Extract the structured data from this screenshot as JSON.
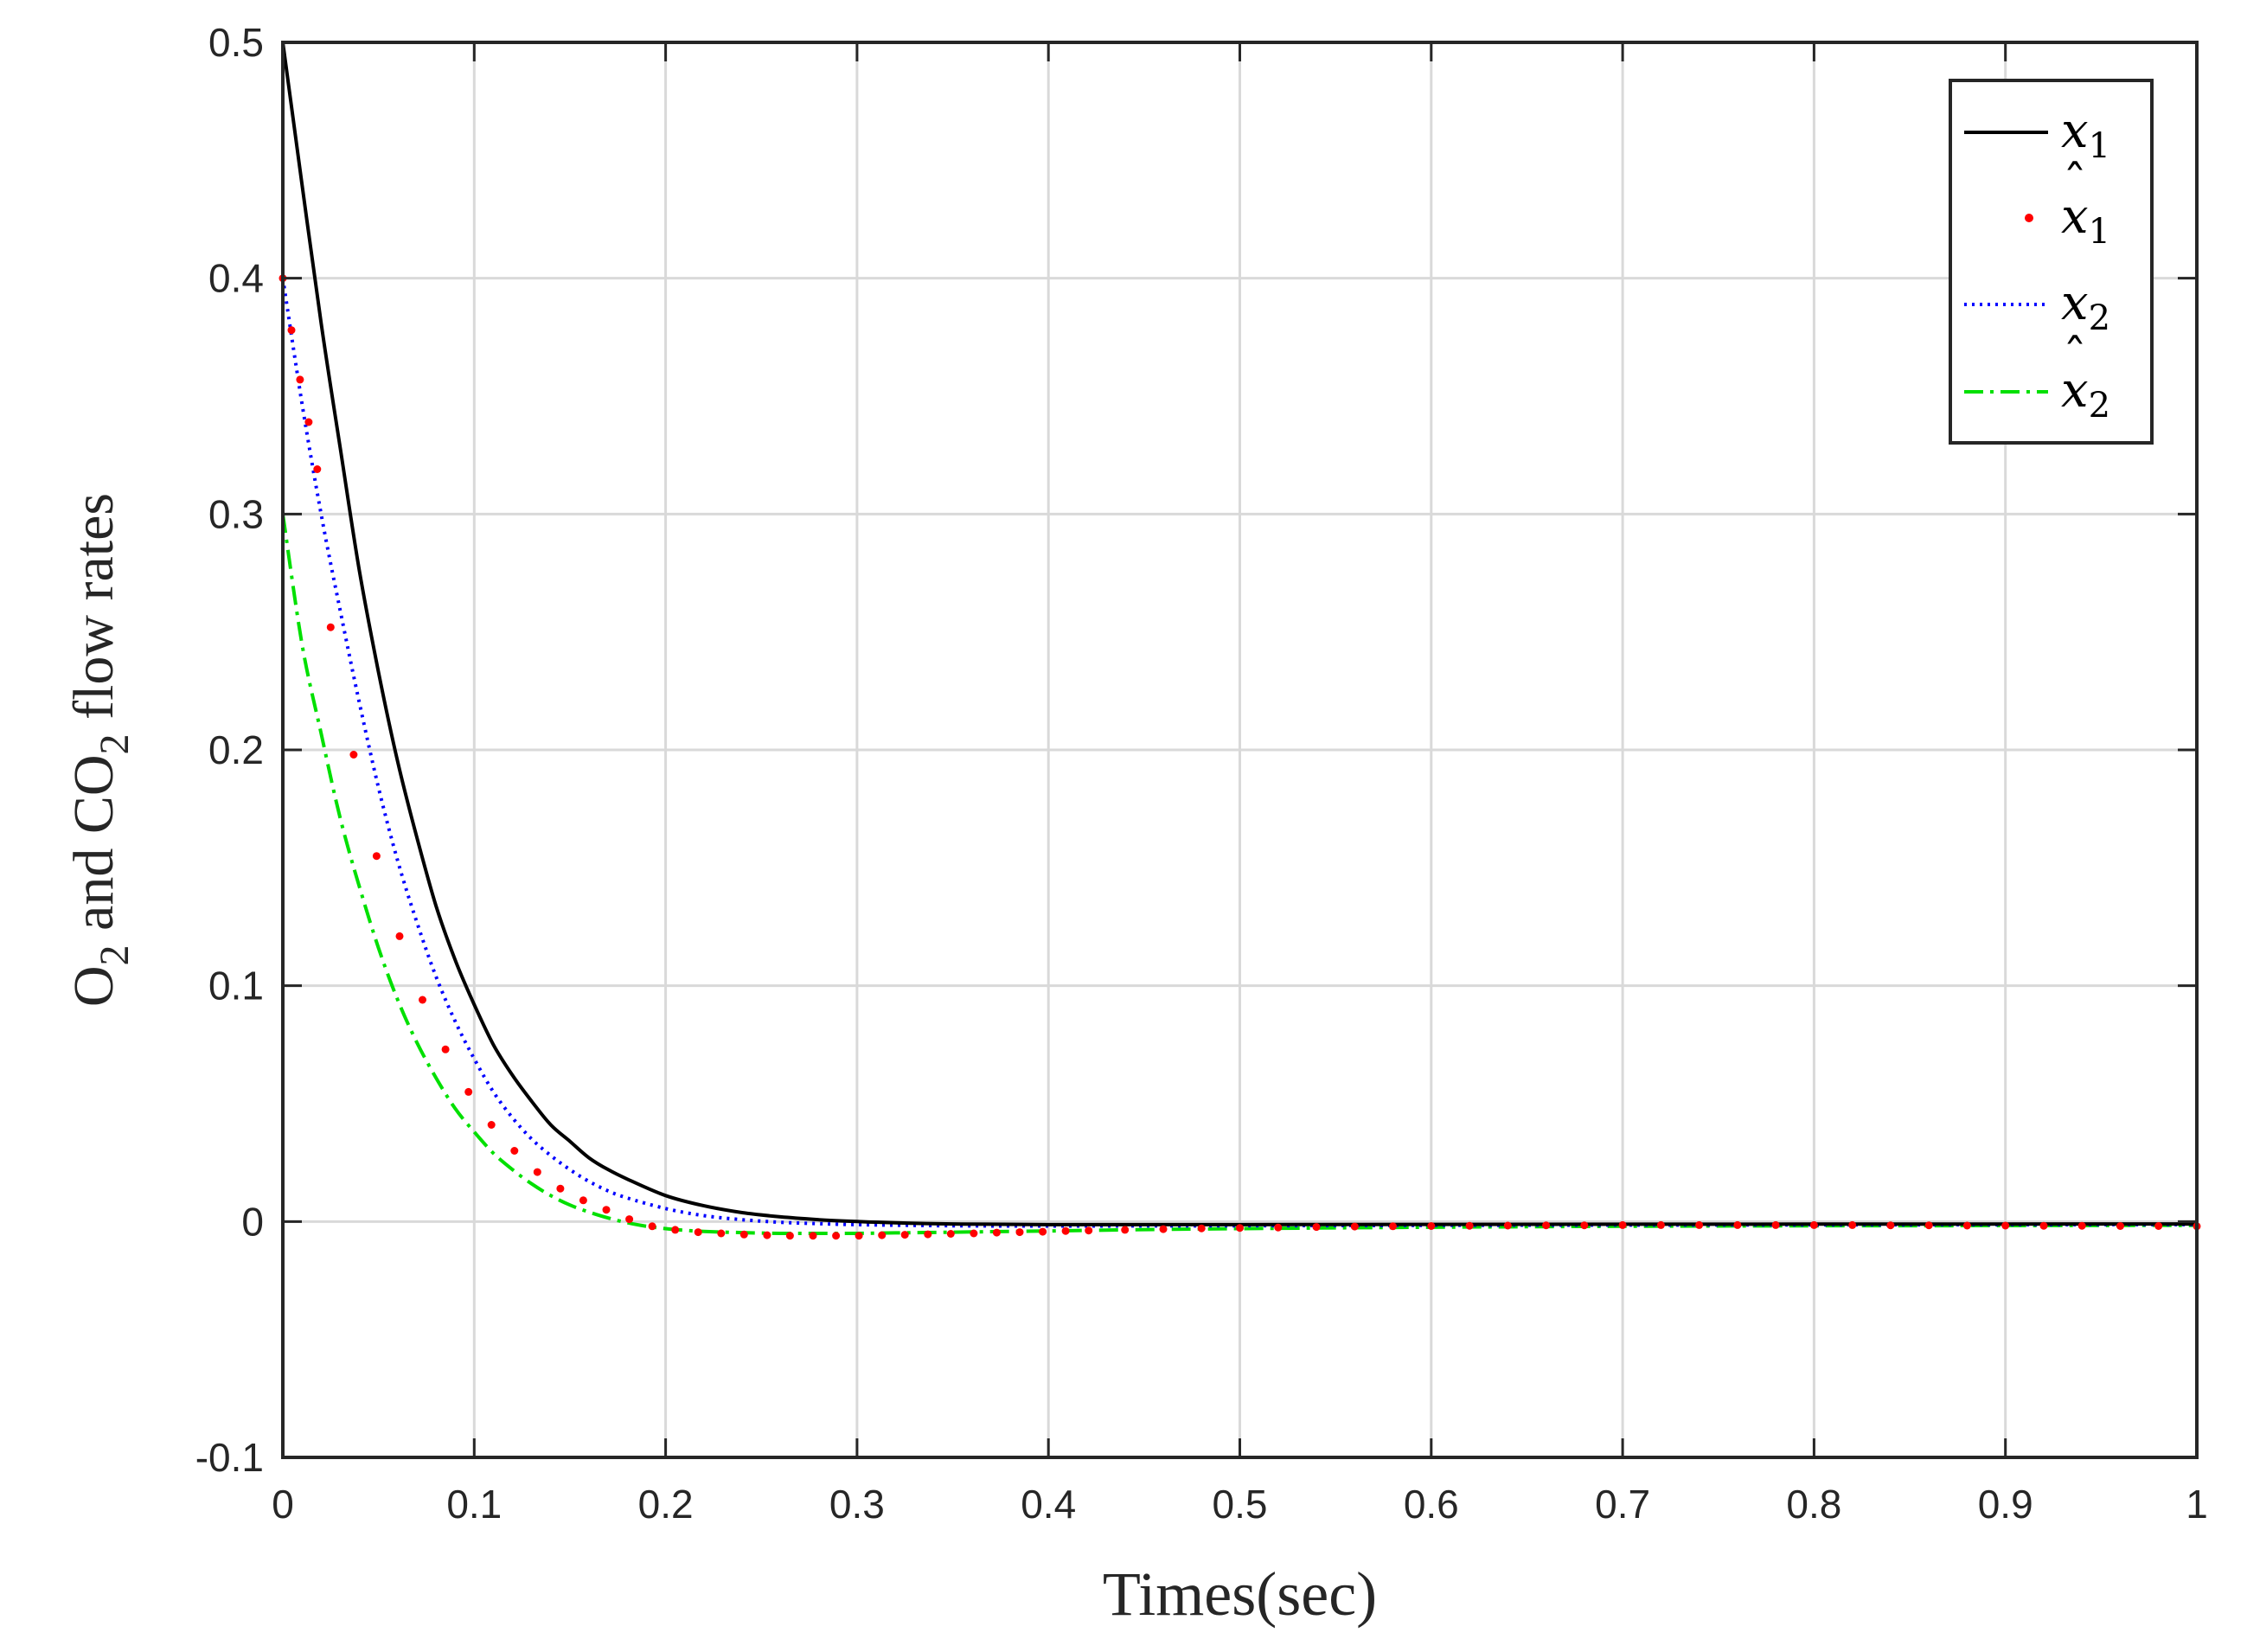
{
  "chart_data": {
    "type": "line",
    "title": "",
    "xlabel": "Times(sec)",
    "ylabel": {
      "parts": [
        "O",
        "2",
        " and CO",
        "2",
        " flow rates"
      ]
    },
    "xlim": [
      0,
      1
    ],
    "ylim": [
      -0.1,
      0.5
    ],
    "x_ticks": [
      0,
      0.1,
      0.2,
      0.3,
      0.4,
      0.5,
      0.6,
      0.7,
      0.8,
      0.9,
      1
    ],
    "x_tick_labels": [
      "0",
      "0.1",
      "0.2",
      "0.3",
      "0.4",
      "0.5",
      "0.6",
      "0.7",
      "0.8",
      "0.9",
      "1"
    ],
    "y_ticks": [
      -0.1,
      0,
      0.1,
      0.2,
      0.3,
      0.4,
      0.5
    ],
    "y_tick_labels": [
      "-0.1",
      "0",
      "0.1",
      "0.2",
      "0.3",
      "0.4",
      "0.5"
    ],
    "grid": true,
    "legend_position": "top-right",
    "series": [
      {
        "name": "x1",
        "legend": {
          "base": "x",
          "sub": "1",
          "hat": false
        },
        "style": "solid",
        "color": "#000000",
        "x": [
          0,
          0.01,
          0.02,
          0.03,
          0.04,
          0.05,
          0.06,
          0.07,
          0.08,
          0.09,
          0.1,
          0.11,
          0.12,
          0.13,
          0.14,
          0.15,
          0.16,
          0.17,
          0.18,
          0.2,
          0.22,
          0.24,
          0.26,
          0.28,
          0.3,
          0.32,
          0.35,
          0.4,
          0.5,
          0.6,
          0.8,
          1.0
        ],
        "y": [
          0.5,
          0.44,
          0.381,
          0.328,
          0.276,
          0.233,
          0.195,
          0.163,
          0.134,
          0.111,
          0.092,
          0.075,
          0.062,
          0.051,
          0.041,
          0.034,
          0.027,
          0.022,
          0.018,
          0.011,
          0.0067,
          0.0038,
          0.002,
          0.0008,
          0.0,
          -0.0005,
          -0.001,
          -0.0013,
          -0.0013,
          -0.0012,
          -0.0011,
          -0.001
        ]
      },
      {
        "name": "x̂1",
        "legend": {
          "base": "x",
          "sub": "1",
          "hat": true
        },
        "style": "dots",
        "color": "#ff0000",
        "x": [
          0,
          0.0045,
          0.009,
          0.0135,
          0.018,
          0.025,
          0.037,
          0.049,
          0.061,
          0.073,
          0.085,
          0.097,
          0.109,
          0.121,
          0.133,
          0.145,
          0.157,
          0.169,
          0.181,
          0.193,
          0.205,
          0.217,
          0.229,
          0.241,
          0.253,
          0.265,
          0.277,
          0.289,
          0.301,
          0.313,
          0.325,
          0.337,
          0.349,
          0.361,
          0.373,
          0.385,
          0.397,
          0.409,
          0.421,
          0.44,
          0.46,
          0.48,
          0.5,
          0.52,
          0.54,
          0.56,
          0.58,
          0.6,
          0.62,
          0.64,
          0.66,
          0.68,
          0.7,
          0.72,
          0.74,
          0.76,
          0.78,
          0.8,
          0.82,
          0.84,
          0.86,
          0.88,
          0.9,
          0.92,
          0.94,
          0.96,
          0.98,
          1.0
        ],
        "y": [
          0.4,
          0.378,
          0.357,
          0.339,
          0.319,
          0.252,
          0.198,
          0.155,
          0.121,
          0.094,
          0.073,
          0.055,
          0.041,
          0.03,
          0.021,
          0.014,
          0.009,
          0.005,
          0.001,
          -0.002,
          -0.0035,
          -0.0045,
          -0.005,
          -0.0055,
          -0.0058,
          -0.006,
          -0.006,
          -0.006,
          -0.006,
          -0.0058,
          -0.0056,
          -0.0054,
          -0.0052,
          -0.005,
          -0.0047,
          -0.0045,
          -0.0043,
          -0.004,
          -0.0038,
          -0.0035,
          -0.0032,
          -0.0029,
          -0.0027,
          -0.0025,
          -0.0023,
          -0.0021,
          -0.002,
          -0.0019,
          -0.0018,
          -0.0017,
          -0.0016,
          -0.0016,
          -0.0015,
          -0.0015,
          -0.0015,
          -0.0015,
          -0.0015,
          -0.0015,
          -0.0015,
          -0.0016,
          -0.0016,
          -0.0017,
          -0.0017,
          -0.0018,
          -0.0018,
          -0.0019,
          -0.0019,
          -0.002
        ]
      },
      {
        "name": "x2",
        "legend": {
          "base": "x",
          "sub": "2",
          "hat": false
        },
        "style": "dotted",
        "color": "#0000ff",
        "x": [
          0,
          0.01,
          0.02,
          0.03,
          0.04,
          0.05,
          0.06,
          0.07,
          0.08,
          0.09,
          0.1,
          0.11,
          0.12,
          0.13,
          0.14,
          0.15,
          0.16,
          0.17,
          0.18,
          0.2,
          0.22,
          0.24,
          0.26,
          0.28,
          0.3,
          0.35,
          0.4,
          0.5,
          0.6,
          0.8,
          1.0
        ],
        "y": [
          0.4,
          0.347,
          0.3,
          0.259,
          0.22,
          0.184,
          0.153,
          0.127,
          0.104,
          0.085,
          0.069,
          0.055,
          0.044,
          0.035,
          0.028,
          0.022,
          0.017,
          0.013,
          0.01,
          0.0055,
          0.0025,
          0.0008,
          -0.0003,
          -0.0009,
          -0.0013,
          -0.0018,
          -0.0019,
          -0.0018,
          -0.0016,
          -0.0014,
          -0.0013
        ]
      },
      {
        "name": "x̂2",
        "legend": {
          "base": "x",
          "sub": "2",
          "hat": true
        },
        "style": "dashdot",
        "color": "#00e000",
        "x": [
          0,
          0.01,
          0.02,
          0.03,
          0.04,
          0.05,
          0.06,
          0.07,
          0.08,
          0.09,
          0.1,
          0.11,
          0.12,
          0.13,
          0.14,
          0.15,
          0.16,
          0.17,
          0.18,
          0.19,
          0.2,
          0.21,
          0.22,
          0.24,
          0.26,
          0.28,
          0.3,
          0.32,
          0.35,
          0.4,
          0.45,
          0.5,
          0.6,
          0.7,
          0.8,
          0.9,
          1.0
        ],
        "y": [
          0.3,
          0.245,
          0.207,
          0.171,
          0.142,
          0.116,
          0.094,
          0.076,
          0.061,
          0.048,
          0.038,
          0.029,
          0.022,
          0.016,
          0.011,
          0.007,
          0.004,
          0.0015,
          -0.0005,
          -0.002,
          -0.003,
          -0.0037,
          -0.0042,
          -0.0047,
          -0.005,
          -0.005,
          -0.005,
          -0.0048,
          -0.0045,
          -0.004,
          -0.0034,
          -0.003,
          -0.0024,
          -0.002,
          -0.0018,
          -0.0017,
          -0.0016
        ]
      }
    ]
  }
}
